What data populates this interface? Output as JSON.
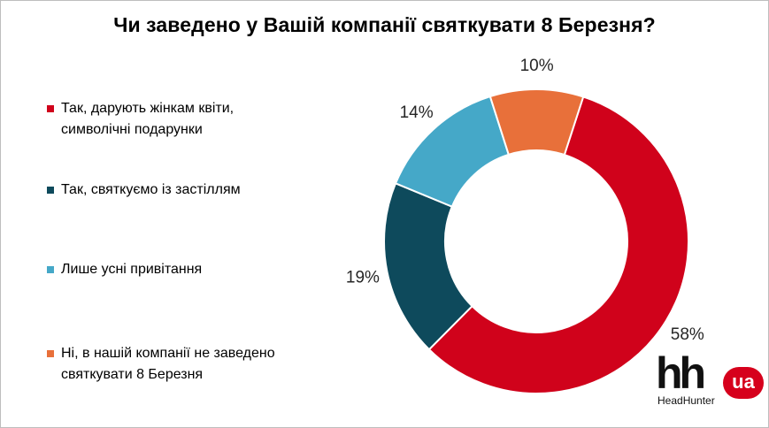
{
  "chart_data": {
    "type": "pie",
    "title": "Чи заведено у Вашій компанії святкувати 8 Березня?",
    "categories": [
      "Так, дарують жінкам квіти, символічні подарунки",
      "Так, святкуємо із застіллям",
      "Лише усні привітання",
      "Ні, в нашій компанії не заведено святкувати 8 Березня"
    ],
    "values": [
      58,
      19,
      14,
      10
    ],
    "value_labels": [
      "58%",
      "19%",
      "14%",
      "10%"
    ],
    "colors": [
      "#d0021b",
      "#0e4a5c",
      "#45a8c8",
      "#e8703a"
    ],
    "donut": true,
    "legend_position": "left"
  },
  "legend": {
    "items": [
      {
        "line1": "Так, дарують жінкам квіти,",
        "line2": "символічні подарунки"
      },
      {
        "line1": "Так, святкуємо із застіллям",
        "line2": ""
      },
      {
        "line1": "Лише усні привітання",
        "line2": ""
      },
      {
        "line1": "Ні, в нашій компанії не заведено",
        "line2": "святкувати 8 Березня"
      }
    ]
  },
  "logo": {
    "mark": "hh",
    "badge": "ua",
    "name": "HeadHunter"
  }
}
